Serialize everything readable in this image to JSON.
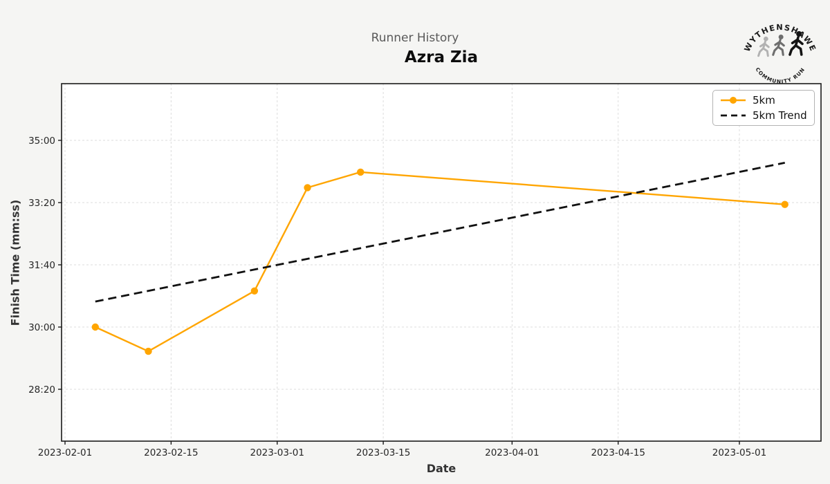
{
  "logo": {
    "arc_top": "WYTHENSHAWE",
    "arc_bottom": "COMMUNITY RUN"
  },
  "chart_data": {
    "type": "line",
    "suptitle": "Runner History",
    "title": "Azra Zia",
    "xlabel": "Date",
    "ylabel": "Finish Time (mm:ss)",
    "grid": true,
    "legend_position": "upper right",
    "x_epoch": "2023-02-01",
    "x_tick_dates": [
      "2023-02-01",
      "2023-02-15",
      "2023-03-01",
      "2023-03-15",
      "2023-04-01",
      "2023-04-15",
      "2023-05-01"
    ],
    "y_ticks": [
      {
        "label": "35:00",
        "seconds": 2100
      },
      {
        "label": "33:20",
        "seconds": 2000
      },
      {
        "label": "31:40",
        "seconds": 1900
      },
      {
        "label": "30:00",
        "seconds": 1800
      },
      {
        "label": "28:20",
        "seconds": 1700
      }
    ],
    "series": [
      {
        "name": "5km",
        "style": "solid-with-markers",
        "color": "#FFA500",
        "points": [
          {
            "date": "2023-02-05",
            "time": "30:00",
            "seconds": 1800
          },
          {
            "date": "2023-02-12",
            "time": "29:21",
            "seconds": 1761
          },
          {
            "date": "2023-02-26",
            "time": "30:58",
            "seconds": 1858
          },
          {
            "date": "2023-03-05",
            "time": "33:44",
            "seconds": 2024
          },
          {
            "date": "2023-03-12",
            "time": "34:09",
            "seconds": 2049
          },
          {
            "date": "2023-05-07",
            "time": "33:17",
            "seconds": 1997
          }
        ]
      },
      {
        "name": "5km Trend",
        "style": "dashed",
        "color": "#111111",
        "points": [
          {
            "date": "2023-02-05",
            "time": "30:41",
            "seconds": 1841
          },
          {
            "date": "2023-05-07",
            "time": "34:24",
            "seconds": 2064
          }
        ]
      }
    ]
  }
}
